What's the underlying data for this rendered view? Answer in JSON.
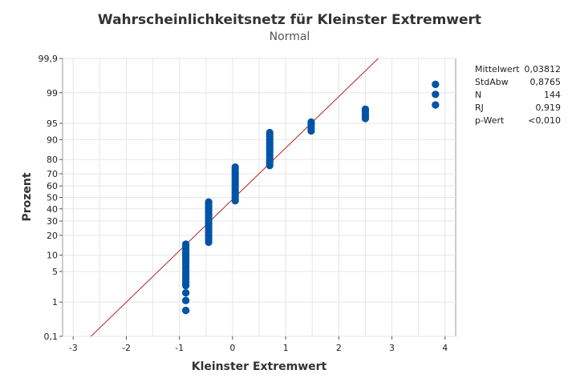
{
  "chart_data": {
    "type": "scatter",
    "title": "Wahrscheinlichkeitsnetz für Kleinster Extremwert",
    "subtitle": "Normal",
    "xlabel": "Kleinster Extremwert",
    "ylabel": "Prozent",
    "xlim": [
      -3.2,
      4.2
    ],
    "x_ticks": [
      -3,
      -2,
      -1,
      0,
      1,
      2,
      3,
      4
    ],
    "x_tick_labels": [
      "-3",
      "-2",
      "-1",
      "0",
      "1",
      "2",
      "3",
      "4"
    ],
    "y_scale": "normal-probability",
    "ylim": [
      0.1,
      99.9
    ],
    "y_ticks": [
      0.1,
      1,
      5,
      10,
      20,
      30,
      40,
      50,
      60,
      70,
      80,
      90,
      95,
      99,
      99.9
    ],
    "y_tick_labels": [
      "0,1",
      "1",
      "5",
      "10",
      "20",
      "30",
      "40",
      "50",
      "60",
      "70",
      "80",
      "90",
      "95",
      "99",
      "99,9"
    ],
    "grid": true,
    "fit_line": {
      "mean": 0.03812,
      "stdev": 0.8765
    },
    "point_groups": [
      {
        "x": -0.88,
        "y_from": 0.6,
        "y_to": 0.6
      },
      {
        "x": -0.88,
        "y_from": 1.1,
        "y_to": 1.1
      },
      {
        "x": -0.88,
        "y_from": 1.7,
        "y_to": 1.7
      },
      {
        "x": -0.88,
        "y_from": 2.5,
        "y_to": 15.0
      },
      {
        "x": -0.45,
        "y_from": 16.0,
        "y_to": 46.0
      },
      {
        "x": 0.05,
        "y_from": 47.0,
        "y_to": 75.0
      },
      {
        "x": 0.7,
        "y_from": 76.0,
        "y_to": 92.5
      },
      {
        "x": 1.48,
        "y_from": 93.0,
        "y_to": 95.3
      },
      {
        "x": 2.5,
        "y_from": 96.0,
        "y_to": 97.5
      },
      {
        "x": 3.82,
        "y_from": 98.0,
        "y_to": 98.0
      },
      {
        "x": 3.82,
        "y_from": 98.9,
        "y_to": 98.9
      },
      {
        "x": 3.82,
        "y_from": 99.4,
        "y_to": 99.4
      }
    ],
    "marker_color": "#0054A6",
    "line_color": "#B22222",
    "stats": [
      {
        "label": "Mittelwert",
        "value": "0,03812"
      },
      {
        "label": "StdAbw",
        "value": "0,8765"
      },
      {
        "label": "N",
        "value": "144"
      },
      {
        "label": "RJ",
        "value": "0,919"
      },
      {
        "label": "p-Wert",
        "value": "<0,010"
      }
    ]
  }
}
